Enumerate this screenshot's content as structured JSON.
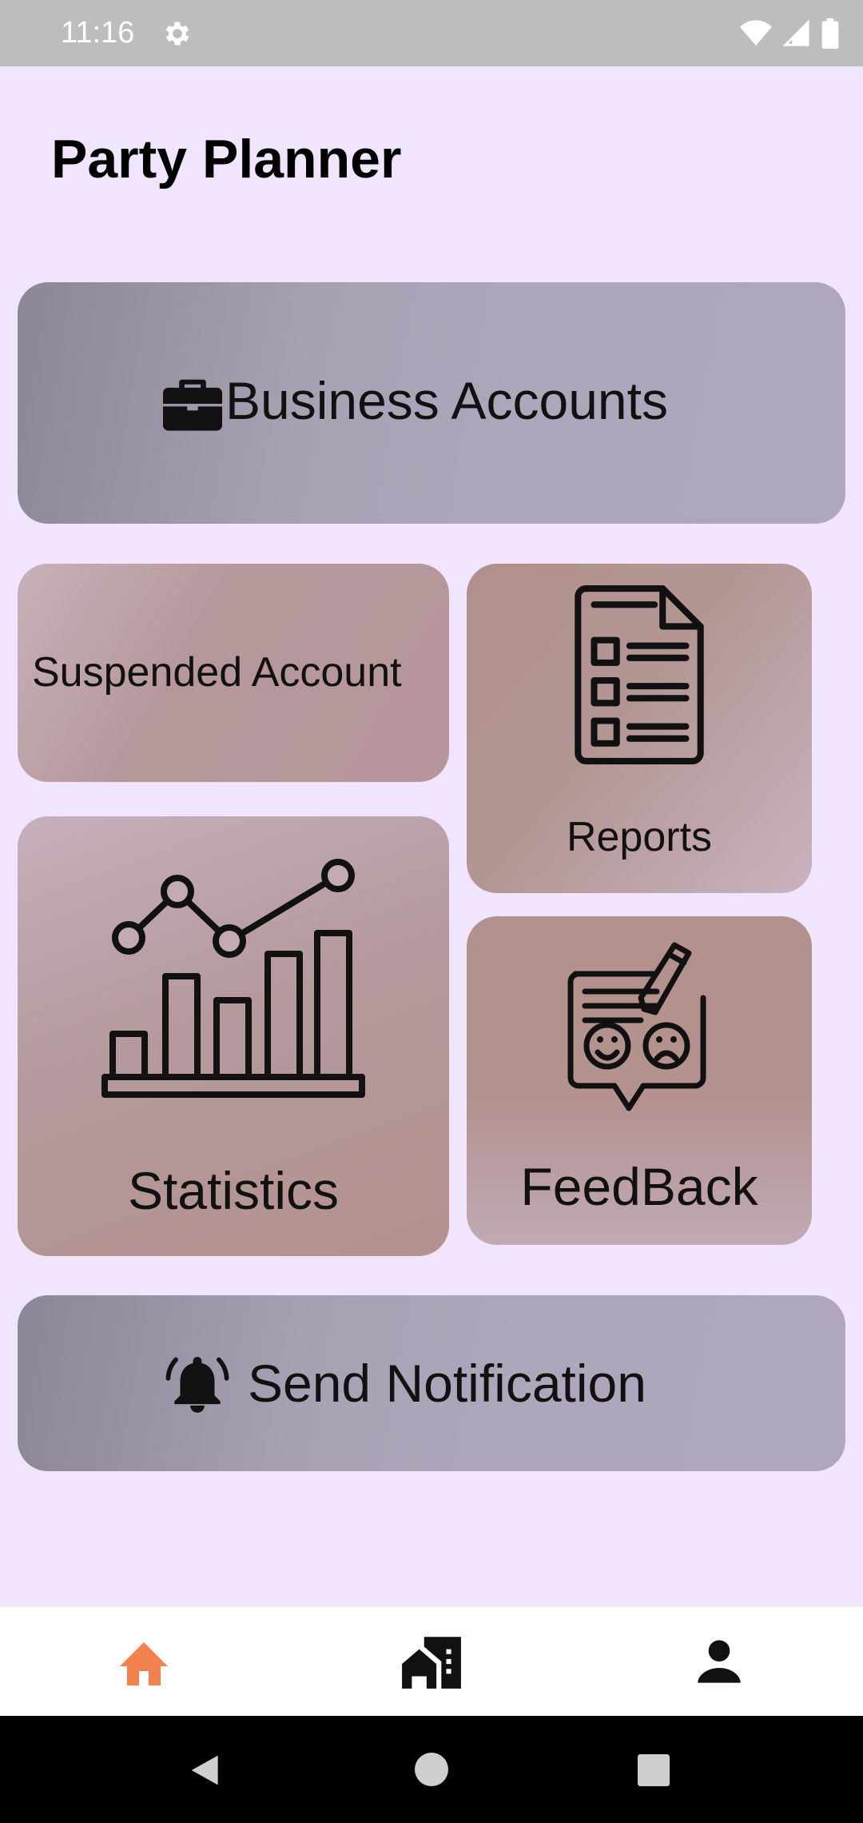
{
  "status_bar": {
    "time": "11:16"
  },
  "app": {
    "title": "Party Planner"
  },
  "cards": {
    "business_accounts": "Business Accounts",
    "suspended_account": "Suspended Account",
    "reports": "Reports",
    "statistics": "Statistics",
    "feedback": "FeedBack",
    "send_notification": "Send Notification"
  },
  "icons": {
    "briefcase": "briefcase-icon",
    "report": "report-document-icon",
    "chart": "statistics-chart-icon",
    "feedback": "feedback-icon",
    "bell": "notification-bell-icon",
    "home": "home-icon",
    "buildings": "buildings-icon",
    "person": "person-icon"
  },
  "colors": {
    "active_nav": "#f4824f",
    "background": "#f0e5fd"
  }
}
